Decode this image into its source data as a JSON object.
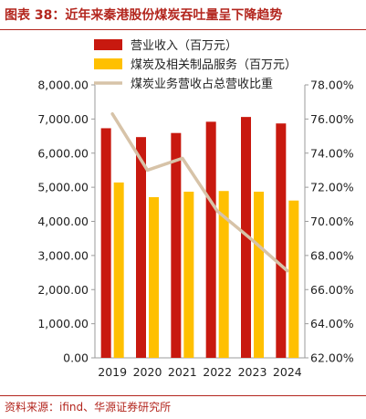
{
  "figure": {
    "title": "图表 38：近年来秦港股份煤炭吞吐量呈下降趋势",
    "source": "资料来源：ifind、华源证券研究所"
  },
  "colors": {
    "bar1": "#c8190f",
    "bar2": "#ffc000",
    "line": "#d7c3a8",
    "accent": "#b3261e",
    "axis": "#9b9b9b"
  },
  "chart_data": {
    "type": "bar",
    "categories": [
      "2019",
      "2020",
      "2021",
      "2022",
      "2023",
      "2024"
    ],
    "series": [
      {
        "name": "营业收入（百万元）",
        "type": "bar",
        "axis": "left",
        "values": [
          6730,
          6470,
          6590,
          6920,
          7060,
          6870
        ]
      },
      {
        "name": "煤炭及相关制品服务（百万元）",
        "type": "bar",
        "axis": "left",
        "values": [
          5140,
          4710,
          4870,
          4890,
          4870,
          4610
        ]
      },
      {
        "name": "煤炭业务营收占总营收比重",
        "type": "line",
        "axis": "right",
        "values": [
          76.3,
          73.0,
          73.7,
          70.6,
          68.9,
          67.1
        ]
      }
    ],
    "yleft": {
      "lim": [
        0,
        8000
      ],
      "ticks": [
        0,
        1000,
        2000,
        3000,
        4000,
        5000,
        6000,
        7000,
        8000
      ],
      "ticklabels": [
        "0.00",
        "1,000.00",
        "2,000.00",
        "3,000.00",
        "4,000.00",
        "5,000.00",
        "6,000.00",
        "7,000.00",
        "8,000.00"
      ]
    },
    "yright": {
      "lim": [
        62,
        78
      ],
      "ticks": [
        62,
        64,
        66,
        68,
        70,
        72,
        74,
        76,
        78
      ],
      "ticklabels": [
        "62.00%",
        "64.00%",
        "66.00%",
        "68.00%",
        "70.00%",
        "72.00%",
        "74.00%",
        "76.00%",
        "78.00%"
      ]
    },
    "grid": false,
    "legend_position": "top"
  }
}
